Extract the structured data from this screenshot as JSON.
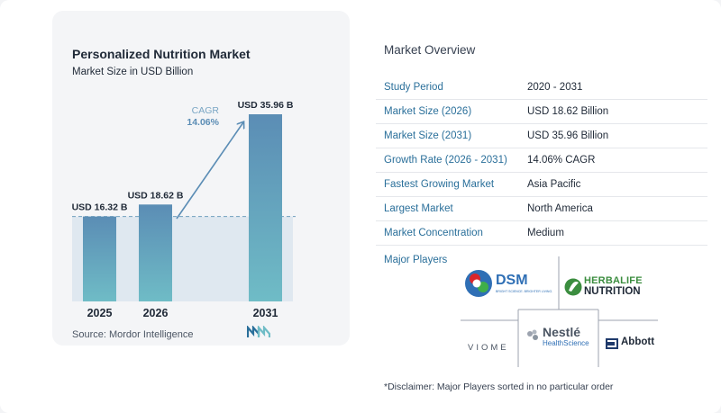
{
  "chart_data": {
    "type": "bar",
    "title": "Personalized Nutrition Market",
    "subtitle": "Market Size in USD Billion",
    "categories": [
      "2025",
      "2026",
      "2031"
    ],
    "values": [
      16.32,
      18.62,
      35.96
    ],
    "data_labels": [
      "USD 16.32 B",
      "USD 18.62 B",
      "USD 35.96 B"
    ],
    "annotation": {
      "label": "CAGR",
      "value": "14.06%"
    },
    "colors": {
      "bar_top": "#5b8db5",
      "bar_bottom": "#6fbcc6",
      "highlight_band": "#dfe8f0",
      "dashed_line": "#6f9fbd",
      "arrow": "#5b8db5"
    }
  },
  "source": "Source:  Mordor Intelligence",
  "overview": {
    "title": "Market Overview",
    "rows": [
      {
        "key": "Study Period",
        "value": "2020 - 2031"
      },
      {
        "key": "Market Size (2026)",
        "value": "USD 18.62 Billion"
      },
      {
        "key": "Market Size (2031)",
        "value": "USD 35.96 Billion"
      },
      {
        "key": "Growth Rate (2026 - 2031)",
        "value": "14.06% CAGR"
      },
      {
        "key": "Fastest Growing Market",
        "value": "Asia Pacific"
      },
      {
        "key": "Largest Market",
        "value": "North America"
      },
      {
        "key": "Market Concentration",
        "value": "Medium"
      }
    ]
  },
  "players": {
    "label": "Major Players",
    "dsm": {
      "name": "DSM",
      "tagline": "BRIGHT SCIENCE. BRIGHTER LIVING."
    },
    "herbalife": {
      "line1": "HERBALIFE",
      "line2": "NUTRITION"
    },
    "viome": "VIOME",
    "nestle": {
      "line1": "Nestlé",
      "line2": "HealthScience"
    },
    "abbott": "Abbott"
  },
  "disclaimer": "*Disclaimer: Major Players sorted in no particular order"
}
